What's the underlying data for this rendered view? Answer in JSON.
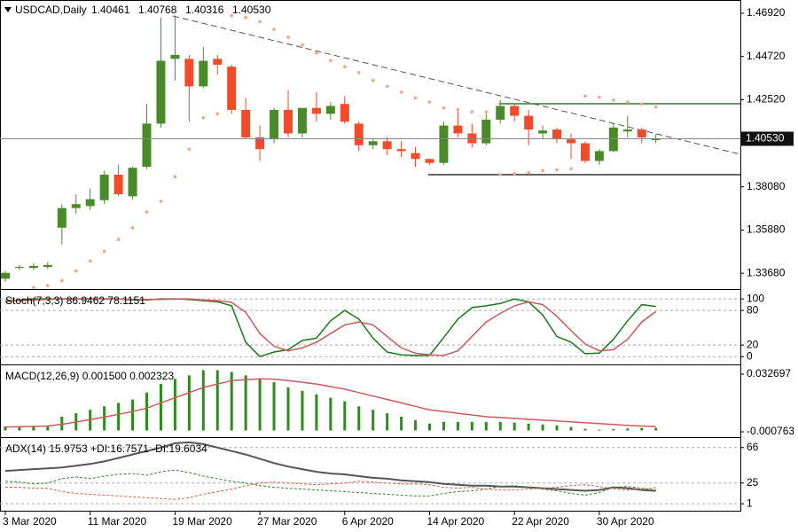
{
  "chart_data": [
    {
      "type": "candlestick",
      "title": "USDCAD,Daily",
      "info": [
        "1.40461",
        "1.40768",
        "1.40316",
        "1.40530"
      ],
      "categories": [
        "3 Mar 2020",
        null,
        null,
        null,
        null,
        null,
        "11 Mar 2020",
        null,
        null,
        null,
        null,
        null,
        "19 Mar 2020",
        null,
        null,
        null,
        null,
        null,
        "27 Mar 2020",
        null,
        null,
        null,
        null,
        null,
        "6 Apr 2020",
        null,
        null,
        null,
        null,
        null,
        "14 Apr 2020",
        null,
        null,
        null,
        null,
        null,
        "22 Apr 2020",
        null,
        null,
        null,
        null,
        null,
        "30 Apr 2020",
        null,
        null,
        null,
        null
      ],
      "open": [
        1.334,
        1.3395,
        1.3395,
        1.34,
        1.36,
        1.37,
        1.371,
        1.374,
        1.387,
        1.376,
        1.391,
        1.413,
        1.446,
        1.446,
        1.432,
        1.446,
        1.442,
        1.42,
        1.406,
        1.405,
        1.42,
        1.408,
        1.421,
        1.418,
        1.423,
        1.413,
        1.402,
        1.404,
        1.4,
        1.398,
        1.395,
        1.393,
        1.412,
        1.408,
        1.403,
        1.415,
        1.422,
        1.417,
        1.408,
        1.41,
        1.405,
        1.403,
        1.394,
        1.399,
        1.409,
        1.41,
        1.40461
      ],
      "high": [
        1.338,
        1.341,
        1.342,
        1.3425,
        1.372,
        1.377,
        1.38,
        1.389,
        1.392,
        1.391,
        1.423,
        1.467,
        1.468,
        1.448,
        1.452,
        1.448,
        1.443,
        1.426,
        1.412,
        1.421,
        1.43,
        1.421,
        1.429,
        1.424,
        1.427,
        1.414,
        1.405,
        1.406,
        1.404,
        1.401,
        1.395,
        1.414,
        1.419,
        1.413,
        1.418,
        1.425,
        1.423,
        1.42,
        1.412,
        1.411,
        1.408,
        1.404,
        1.4,
        1.413,
        1.417,
        1.411,
        1.40768
      ],
      "low": [
        1.3325,
        1.3385,
        1.3385,
        1.339,
        1.3515,
        1.367,
        1.369,
        1.372,
        1.376,
        1.3745,
        1.39,
        1.411,
        1.435,
        1.414,
        1.431,
        1.438,
        1.418,
        1.405,
        1.394,
        1.403,
        1.406,
        1.406,
        1.414,
        1.415,
        1.413,
        1.399,
        1.4,
        1.397,
        1.396,
        1.391,
        1.392,
        1.392,
        1.406,
        1.401,
        1.402,
        1.413,
        1.414,
        1.402,
        1.405,
        1.403,
        1.395,
        1.393,
        1.392,
        1.3985,
        1.406,
        1.403,
        1.40316
      ],
      "close": [
        1.337,
        1.34,
        1.3405,
        1.341,
        1.37,
        1.372,
        1.3745,
        1.387,
        1.377,
        1.3905,
        1.413,
        1.445,
        1.448,
        1.432,
        1.445,
        1.443,
        1.42,
        1.406,
        1.4,
        1.42,
        1.408,
        1.421,
        1.418,
        1.422,
        1.414,
        1.402,
        1.404,
        1.4,
        1.399,
        1.395,
        1.393,
        1.412,
        1.408,
        1.403,
        1.415,
        1.422,
        1.417,
        1.41,
        1.4095,
        1.405,
        1.403,
        1.394,
        1.399,
        1.411,
        1.41,
        1.406,
        1.4053
      ],
      "sar": [
        null,
        null,
        1.3295,
        1.3305,
        1.333,
        1.338,
        1.343,
        1.348,
        1.354,
        1.36,
        1.368,
        1.3735,
        1.386,
        1.4,
        1.416,
        1.418,
        1.468,
        1.467,
        1.465,
        1.461,
        1.457,
        1.453,
        1.449,
        1.445,
        1.442,
        1.439,
        1.435,
        1.432,
        1.429,
        1.426,
        1.424,
        1.421,
        1.42,
        1.419,
        1.419,
        1.387,
        1.3875,
        1.388,
        1.389,
        1.3895,
        1.39,
        1.427,
        1.4265,
        1.425,
        1.424,
        1.423,
        1.4215
      ],
      "up_color": "#4b8a2a",
      "down_color": "#f04b2b",
      "sar_color": "#f4a582",
      "ylim": [
        1.3292,
        1.4737
      ],
      "yticks": [
        {
          "value": 1.4692,
          "label": "1.46920"
        },
        {
          "value": 1.4472,
          "label": "1.44720"
        },
        {
          "value": 1.4252,
          "label": "1.42520"
        },
        {
          "value": 1.4032,
          "label": "1.40320"
        },
        {
          "value": 1.3808,
          "label": "1.38080"
        },
        {
          "value": 1.3588,
          "label": "1.35880"
        },
        {
          "value": 1.3368,
          "label": "1.33680"
        }
      ],
      "last_price": {
        "value": 1.4053,
        "label": "1.40530"
      },
      "grid": false
    },
    {
      "type": "line",
      "title": "Stoch(7,3,3) 86.9462 78.1151",
      "series": [
        {
          "color": "#1a7a1a",
          "values": [
            95,
            98,
            100,
            100,
            100,
            100,
            100,
            100,
            100,
            98,
            98,
            100,
            100,
            99,
            97,
            95,
            88,
            25,
            0,
            8,
            12,
            28,
            32,
            62,
            80,
            65,
            32,
            8,
            3,
            2,
            2,
            33,
            65,
            85,
            88,
            92,
            100,
            95,
            72,
            35,
            25,
            5,
            6,
            30,
            62,
            90,
            86.9462
          ]
        },
        {
          "color": "#c85a5a",
          "values": [
            97,
            97,
            98,
            99,
            100,
            100,
            100,
            100,
            100,
            99,
            99,
            99,
            100,
            100,
            98,
            97,
            94,
            77,
            40,
            18,
            10,
            15,
            25,
            40,
            55,
            60,
            55,
            35,
            15,
            6,
            3,
            2,
            10,
            35,
            60,
            75,
            88,
            95,
            90,
            70,
            45,
            22,
            10,
            12,
            30,
            60,
            78.1151
          ]
        }
      ],
      "ylim": [
        -12,
        114
      ],
      "yticks": [
        100,
        80,
        20,
        0
      ],
      "grid": true
    },
    {
      "type": "bar",
      "title": "MACD(12,26,9) 0.001500 0.002323",
      "series": [
        {
          "type": "bar",
          "color": "#2e8b1e",
          "values": [
            0.0024,
            0.0026,
            0.0027,
            0.0028,
            0.008,
            0.01,
            0.012,
            0.014,
            0.016,
            0.018,
            0.022,
            0.027,
            0.03,
            0.032,
            0.035,
            0.035,
            0.034,
            0.032,
            0.03,
            0.028,
            0.025,
            0.023,
            0.021,
            0.019,
            0.017,
            0.014,
            0.012,
            0.01,
            0.008,
            0.006,
            0.004,
            0.005,
            0.005,
            0.005,
            0.005,
            0.005,
            0.0045,
            0.004,
            0.0035,
            0.003,
            0.002,
            0.001,
            0.0005,
            0.0008,
            0.0012,
            0.0015,
            0.0015
          ]
        },
        {
          "type": "line",
          "color": "#d05a5a",
          "values": [
            0.002,
            0.0022,
            0.0024,
            0.0026,
            0.0036,
            0.0049,
            0.0063,
            0.0078,
            0.0094,
            0.011,
            0.013,
            0.016,
            0.019,
            0.022,
            0.025,
            0.027,
            0.029,
            0.0295,
            0.03,
            0.0298,
            0.029,
            0.028,
            0.027,
            0.0255,
            0.024,
            0.022,
            0.02,
            0.018,
            0.016,
            0.014,
            0.012,
            0.011,
            0.01,
            0.009,
            0.008,
            0.0075,
            0.007,
            0.0065,
            0.006,
            0.0055,
            0.005,
            0.0045,
            0.004,
            0.0035,
            0.003,
            0.0026,
            0.002323
          ]
        }
      ],
      "ylim": [
        -0.00334,
        0.03733
      ],
      "yticks": [
        0.032697,
        -0.000763
      ],
      "grid": false
    },
    {
      "type": "line",
      "title": "ADX(14) 15.9753 +DI:16.7571 -DI:19.6034",
      "series": [
        {
          "color": "#555555",
          "width": 2,
          "values": [
            39,
            40,
            41,
            42,
            43,
            45,
            47,
            50,
            54,
            58,
            62,
            66,
            71,
            72,
            70,
            66,
            62,
            58,
            53,
            48,
            44,
            41,
            38,
            36,
            35,
            33,
            31,
            30,
            28,
            27,
            26,
            24,
            23,
            22,
            22,
            21,
            21,
            20,
            19,
            18,
            17,
            16,
            17,
            20,
            19,
            17,
            15.9753
          ]
        },
        {
          "color": "#2e8b2e",
          "dash": true,
          "values": [
            27,
            26,
            24,
            25,
            30,
            32,
            30,
            33,
            35,
            36,
            34,
            38,
            40,
            37,
            33,
            30,
            27,
            25,
            22,
            20,
            19,
            18,
            17,
            16,
            15,
            14,
            13,
            12,
            11,
            10,
            10,
            13,
            15,
            16,
            18,
            21,
            22,
            20,
            18,
            16,
            13,
            11,
            14,
            20,
            21,
            19,
            16.7571
          ]
        },
        {
          "color": "#e06040",
          "dash": true,
          "values": [
            20,
            20,
            19,
            19,
            15,
            13,
            12,
            11,
            10,
            9,
            8,
            7,
            6,
            8,
            12,
            15,
            18,
            22,
            25,
            26,
            25,
            24,
            23,
            24,
            25,
            27,
            26,
            25,
            24,
            24,
            23,
            20,
            19,
            20,
            18,
            17,
            17,
            18,
            19,
            20,
            22,
            23,
            21,
            18,
            17,
            18,
            19.6034
          ]
        }
      ],
      "ylim": [
        -6,
        76
      ],
      "yticks": [
        66,
        25,
        1
      ],
      "grid": true
    }
  ]
}
